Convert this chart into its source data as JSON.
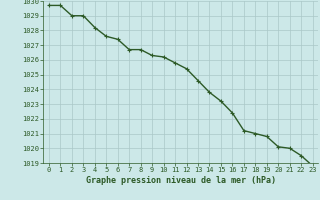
{
  "x": [
    0,
    1,
    2,
    3,
    4,
    5,
    6,
    7,
    8,
    9,
    10,
    11,
    12,
    13,
    14,
    15,
    16,
    17,
    18,
    19,
    20,
    21,
    22,
    23
  ],
  "y": [
    1029.7,
    1029.7,
    1029.0,
    1029.0,
    1028.2,
    1027.6,
    1027.4,
    1026.7,
    1026.7,
    1026.3,
    1026.2,
    1025.8,
    1025.4,
    1024.6,
    1023.8,
    1023.2,
    1022.4,
    1021.2,
    1021.0,
    1020.8,
    1020.1,
    1020.0,
    1019.5,
    1018.8
  ],
  "line_color": "#2d5a27",
  "marker": "+",
  "marker_size": 3.5,
  "marker_color": "#2d5a27",
  "bg_color": "#cce8e8",
  "grid_color": "#aac8c8",
  "tick_color": "#2d5a27",
  "label_color": "#2d5a27",
  "xlabel": "Graphe pression niveau de la mer (hPa)",
  "ylim": [
    1019,
    1030
  ],
  "yticks": [
    1019,
    1020,
    1021,
    1022,
    1023,
    1024,
    1025,
    1026,
    1027,
    1028,
    1029,
    1030
  ],
  "xticks": [
    0,
    1,
    2,
    3,
    4,
    5,
    6,
    7,
    8,
    9,
    10,
    11,
    12,
    13,
    14,
    15,
    16,
    17,
    18,
    19,
    20,
    21,
    22,
    23
  ],
  "line_width": 1.0,
  "tick_fontsize": 5.0,
  "xlabel_fontsize": 6.0
}
